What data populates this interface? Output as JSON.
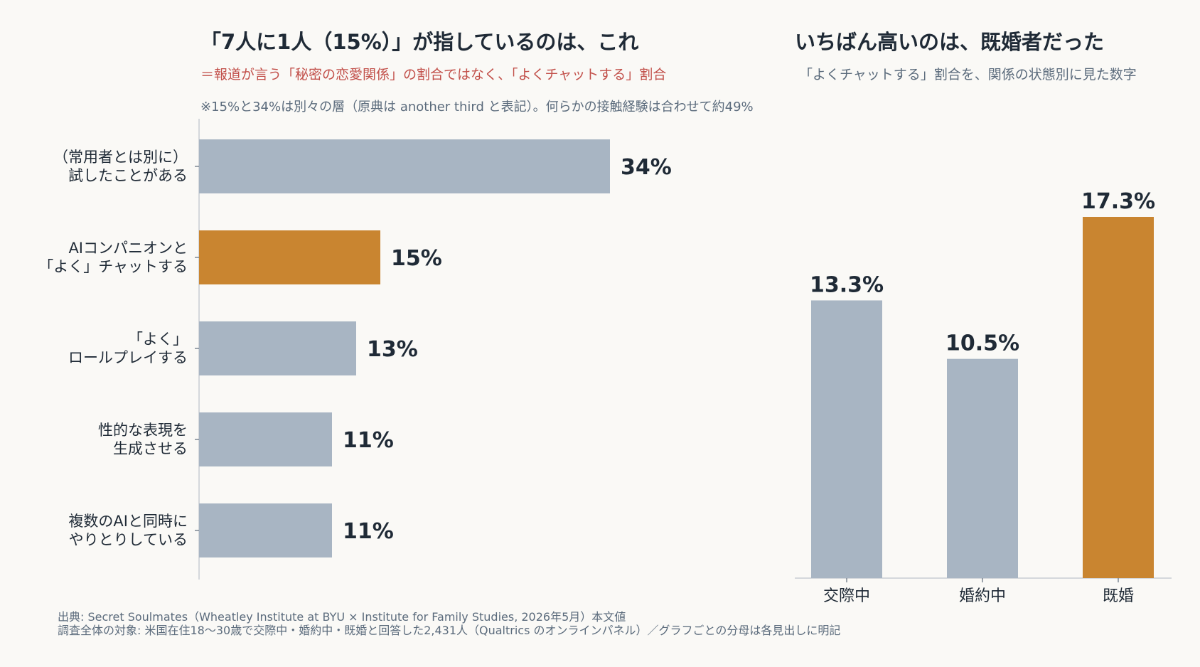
{
  "left_panel": {
    "title": "「7人に1人（15%）」が指しているのは、これ",
    "subtitle": "＝報道が言う「秘密の恋愛関係」の割合ではなく、「よくチャットする」割合",
    "note": "※15%と34%は別々の層（原典は another third と表記）。何らかの接触経験は合わせて約49%"
  },
  "right_panel": {
    "title": "いちばん高いのは、既婚者だった",
    "subtitle": "「よくチャットする」割合を、関係の状態別に見た数字"
  },
  "footer": {
    "source": "出典: Secret Soulmates（Wheatley Institute at BYU × Institute for Family Studies, 2026年5月）本文値",
    "population": "調査全体の対象: 米国在住18〜30歳で交際中・婚約中・既婚と回答した2,431人（Qualtrics のオンラインパネル）／グラフごとの分母は各見出しに明記"
  },
  "colors": {
    "base": "#a8b5c3",
    "highlight": "#c98530",
    "label": "#1f2a36",
    "axis": "#c8cdd3"
  },
  "chart_data": [
    {
      "type": "bar",
      "orientation": "horizontal",
      "categories": [
        [
          "（常用者とは別に）",
          "試したことがある"
        ],
        [
          "AIコンパニオンと",
          "「よく」チャットする"
        ],
        [
          "「よく」",
          "ロールプレイする"
        ],
        [
          "性的な表現を",
          "生成させる"
        ],
        [
          "複数のAIと同時に",
          "やりとりしている"
        ]
      ],
      "values": [
        34,
        15,
        13,
        11,
        11
      ],
      "value_labels": [
        "34%",
        "15%",
        "13%",
        "11%",
        "11%"
      ],
      "highlight_index": 1,
      "xlim": [
        0,
        36
      ]
    },
    {
      "type": "bar",
      "orientation": "vertical",
      "categories": [
        "交際中",
        "婚約中",
        "既婚"
      ],
      "values": [
        13.3,
        10.5,
        17.3
      ],
      "value_labels": [
        "13.3%",
        "10.5%",
        "17.3%"
      ],
      "highlight_index": 2,
      "ylim": [
        0,
        18
      ]
    }
  ]
}
